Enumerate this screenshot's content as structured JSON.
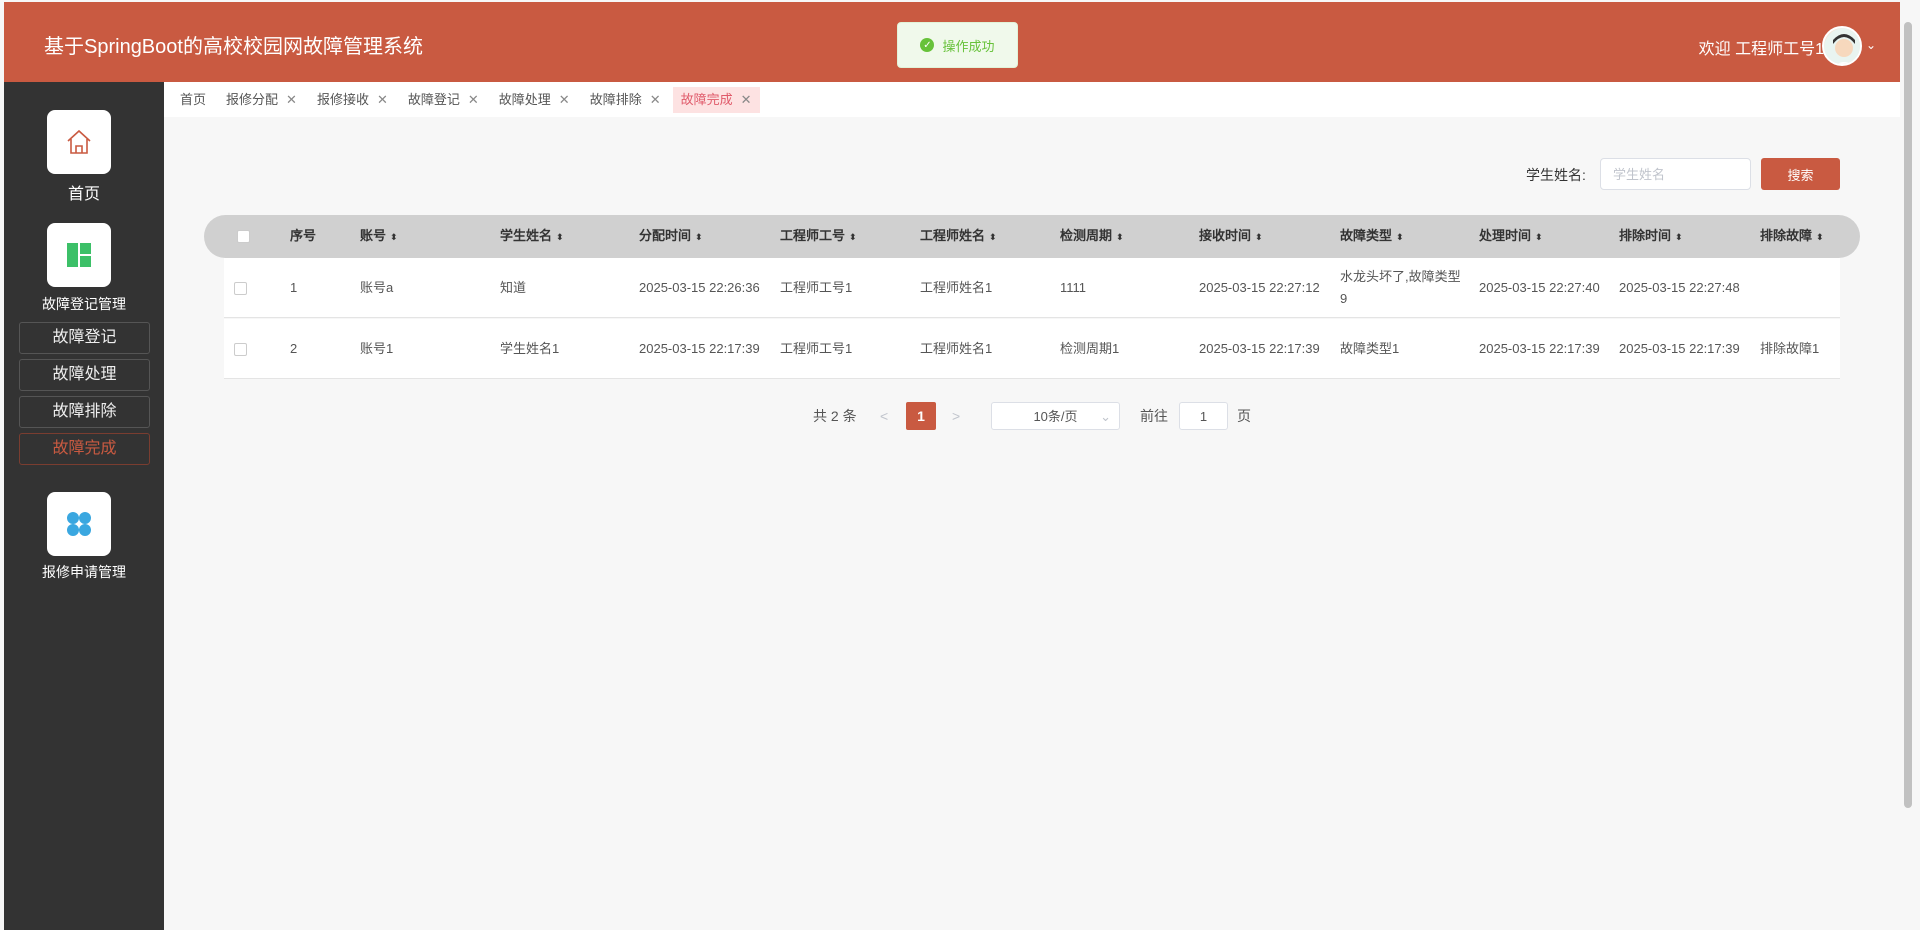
{
  "header": {
    "title": "基于SpringBoot的高校校园网故障管理系统",
    "welcome": "欢迎 工程师工号1",
    "toast": "操作成功"
  },
  "sidebar": {
    "home": "首页",
    "group1": "故障登记管理",
    "subs": [
      "故障登记",
      "故障处理",
      "故障排除",
      "故障完成"
    ],
    "group2": "报修申请管理"
  },
  "tabs": [
    {
      "label": "首页"
    },
    {
      "label": "报修分配"
    },
    {
      "label": "报修接收"
    },
    {
      "label": "故障登记"
    },
    {
      "label": "故障处理"
    },
    {
      "label": "故障排除"
    },
    {
      "label": "故障完成",
      "active": true
    }
  ],
  "search": {
    "label": "学生姓名:",
    "placeholder": "学生姓名",
    "button": "搜索"
  },
  "table": {
    "columns": [
      "序号",
      "账号",
      "学生姓名",
      "分配时间",
      "工程师工号",
      "工程师姓名",
      "检测周期",
      "接收时间",
      "故障类型",
      "处理时间",
      "排除时间",
      "排除故障"
    ],
    "rows": [
      [
        "1",
        "账号a",
        "知道",
        "2025-03-15 22:26:36",
        "工程师工号1",
        "工程师姓名1",
        "1111",
        "2025-03-15 22:27:12",
        "水龙头坏了,故障类型9",
        "2025-03-15 22:27:40",
        "2025-03-15 22:27:48",
        ""
      ],
      [
        "2",
        "账号1",
        "学生姓名1",
        "2025-03-15 22:17:39",
        "工程师工号1",
        "工程师姓名1",
        "检测周期1",
        "2025-03-15 22:17:39",
        "故障类型1",
        "2025-03-15 22:17:39",
        "2025-03-15 22:17:39",
        "排除故障1"
      ]
    ]
  },
  "pager": {
    "total": "共 2 条",
    "prev": "<",
    "page": "1",
    "next": ">",
    "size": "10条/页",
    "goto": "前往",
    "goto_value": "1",
    "page_unit": "页"
  },
  "colors": {
    "accent": "#c95a41",
    "sidebar": "#333333"
  }
}
